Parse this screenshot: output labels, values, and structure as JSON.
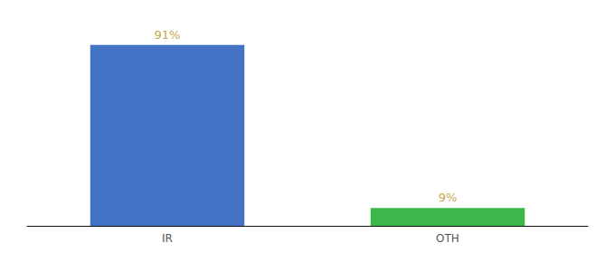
{
  "chart_data": {
    "type": "bar",
    "categories": [
      "IR",
      "OTH"
    ],
    "values": [
      91,
      9
    ],
    "value_labels": [
      "91%",
      "9%"
    ],
    "colors": [
      "#4472c4",
      "#3cb84a"
    ],
    "ylim": [
      0,
      100
    ],
    "grid": false,
    "data_labels": true,
    "tick_labels": "x"
  }
}
